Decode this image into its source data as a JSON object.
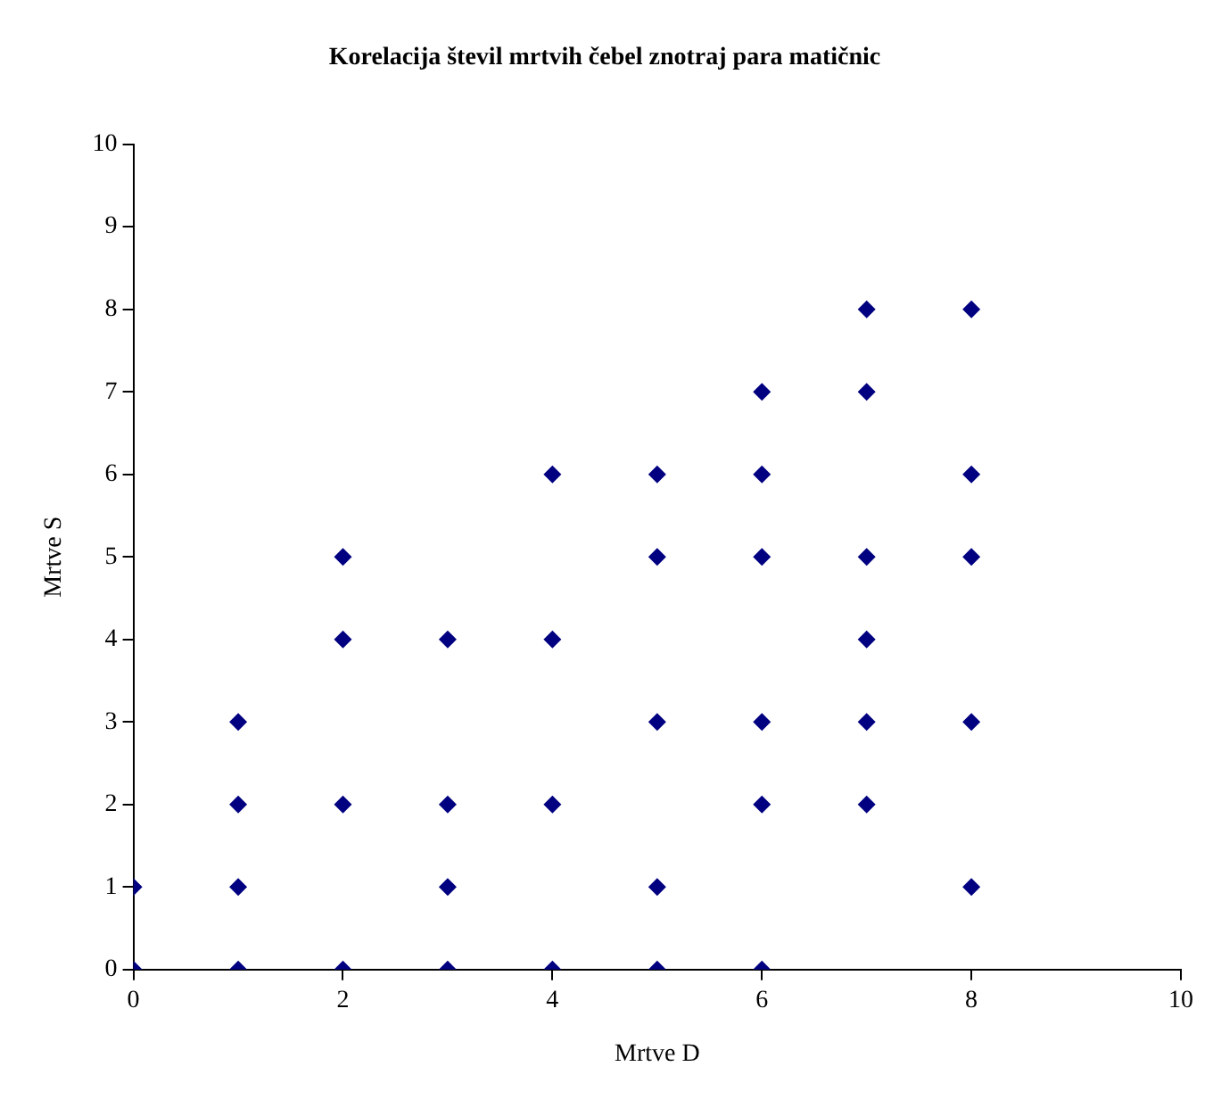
{
  "chart_data": {
    "type": "scatter",
    "title": "Korelacija števil mrtvih čebel znotraj para matičnic",
    "xlabel": "Mrtve D",
    "ylabel": "Mrtve S",
    "series": [
      {
        "color": "#000080",
        "x": [
          0,
          0,
          1,
          1,
          1,
          1,
          2,
          2,
          2,
          2,
          3,
          3,
          3,
          3,
          4,
          4,
          4,
          4,
          5,
          5,
          5,
          5,
          5,
          6,
          6,
          6,
          6,
          6,
          6,
          7,
          7,
          7,
          7,
          7,
          7,
          8,
          8,
          8,
          8,
          8
        ],
        "values": [
          0,
          1,
          0,
          1,
          2,
          3,
          0,
          2,
          4,
          5,
          0,
          1,
          2,
          4,
          0,
          2,
          4,
          6,
          0,
          1,
          3,
          5,
          6,
          0,
          2,
          3,
          5,
          6,
          7,
          2,
          3,
          4,
          5,
          7,
          8,
          1,
          3,
          5,
          6,
          8
        ]
      }
    ],
    "xlim": [
      0,
      10
    ],
    "xticks": [
      0,
      2,
      4,
      6,
      8,
      10
    ],
    "ylim": [
      0,
      10
    ],
    "yticks": [
      0,
      1,
      2,
      3,
      4,
      5,
      6,
      7,
      8,
      9,
      10
    ],
    "grid": false,
    "legend": false,
    "marker": "diamond"
  }
}
